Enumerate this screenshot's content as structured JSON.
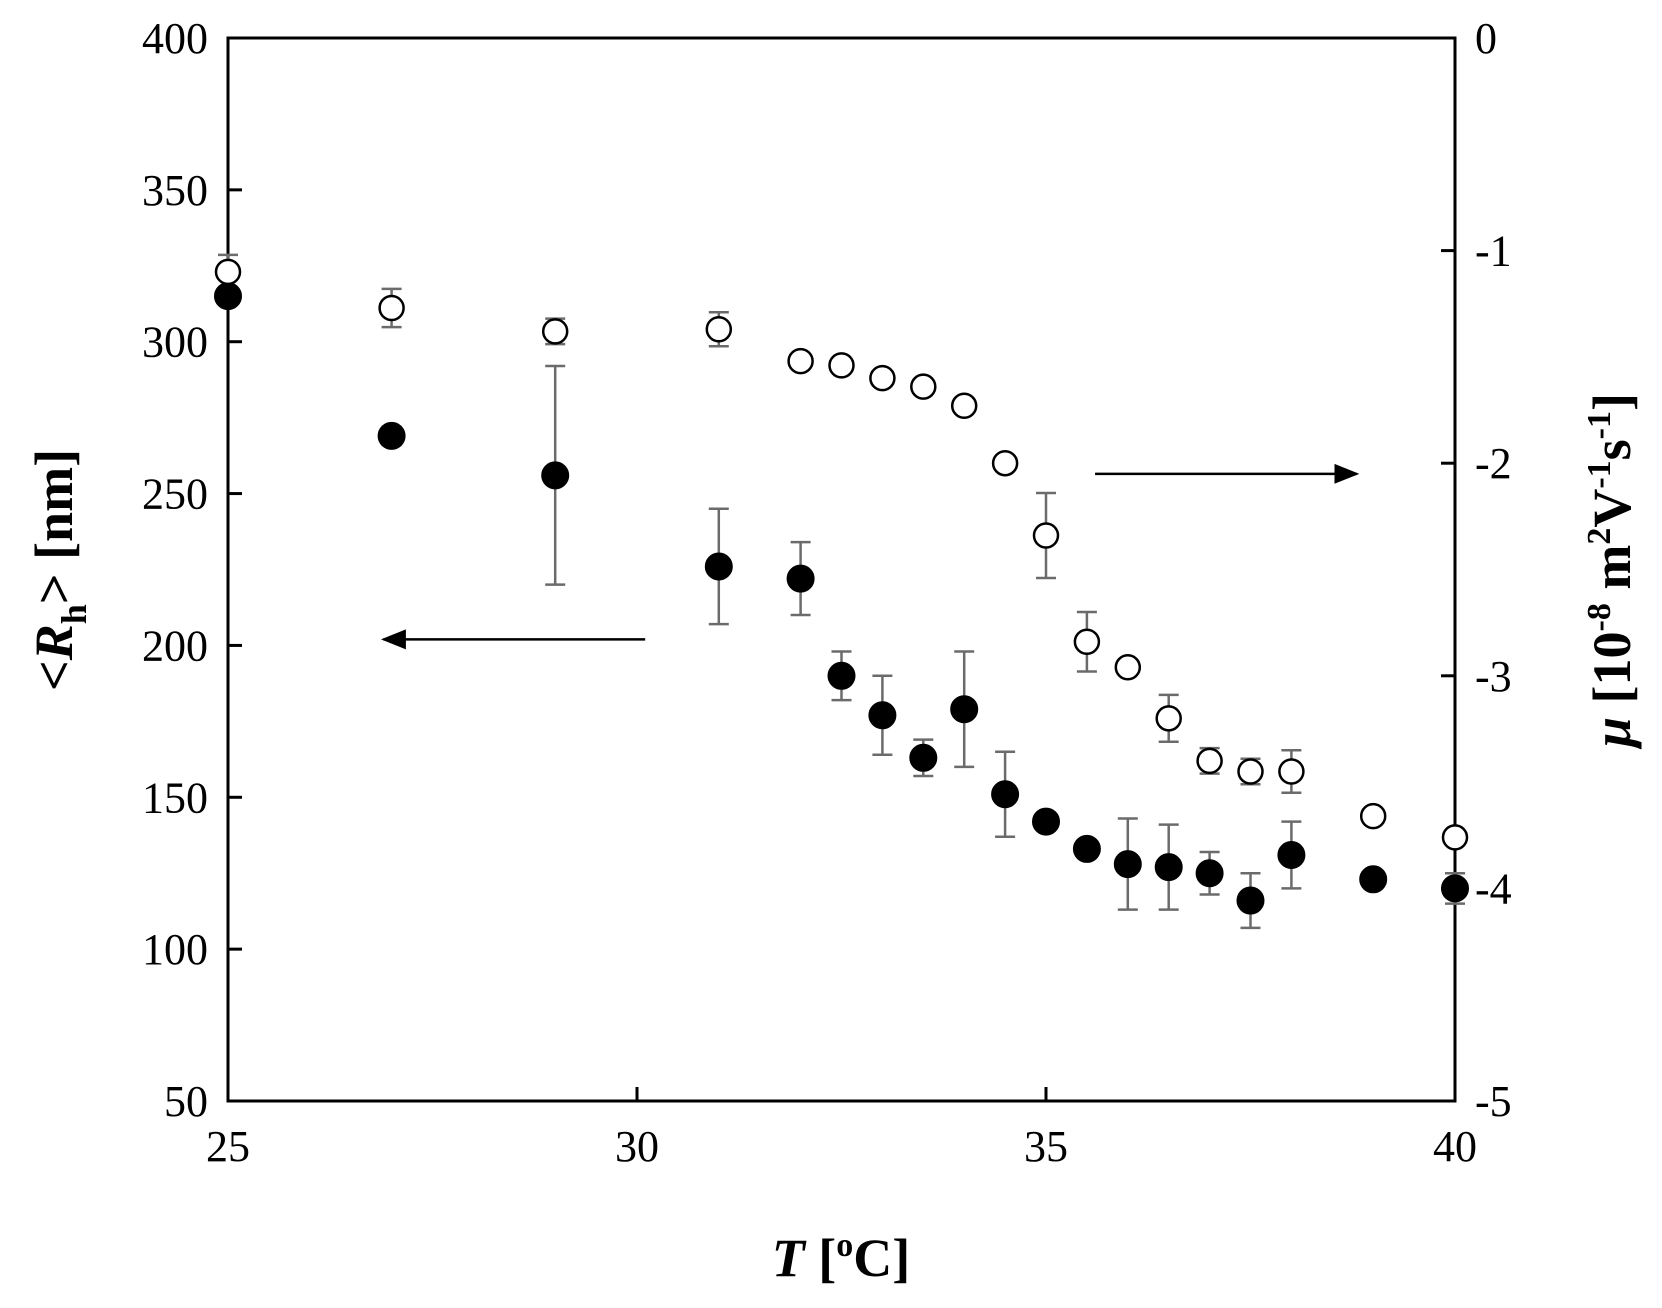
{
  "chart_data": {
    "type": "scatter",
    "title": "",
    "xlabel": {
      "var": "T",
      "unit_open": " [",
      "unit_sup": "o",
      "unit_close": "C]"
    },
    "ylabel_left": {
      "open": "<",
      "var": "R",
      "sub": "h",
      "rest": "> [nm]"
    },
    "ylabel_right": {
      "var": "μ",
      "pre": " [10",
      "sup1": "-8",
      "mid1": " m",
      "sup2": "2",
      "mid2": "V",
      "sup3": "-1",
      "mid3": "s",
      "sup4": "-1",
      "close": "]"
    },
    "xlim": [
      25,
      40
    ],
    "ylim_left": [
      50,
      400
    ],
    "ylim_right": [
      -5,
      0
    ],
    "x_ticks": [
      "25",
      "30",
      "35",
      "40"
    ],
    "y_left_ticks": [
      "50",
      "100",
      "150",
      "200",
      "250",
      "300",
      "350",
      "400"
    ],
    "y_right_ticks": [
      "-5",
      "-4",
      "-3",
      "-2",
      "-1",
      "0"
    ],
    "grid": false,
    "series": [
      {
        "marker": "filled-circle",
        "axis": "left",
        "points": [
          {
            "x": 25,
            "y": 315,
            "err": 0
          },
          {
            "x": 27,
            "y": 269,
            "err": 3
          },
          {
            "x": 29,
            "y": 256,
            "err": 36
          },
          {
            "x": 31,
            "y": 226,
            "err": 19
          },
          {
            "x": 32,
            "y": 222,
            "err": 12
          },
          {
            "x": 32.5,
            "y": 190,
            "err": 8
          },
          {
            "x": 33,
            "y": 177,
            "err": 13
          },
          {
            "x": 33.5,
            "y": 163,
            "err": 6
          },
          {
            "x": 34,
            "y": 179,
            "err": 19
          },
          {
            "x": 34.5,
            "y": 151,
            "err": 14
          },
          {
            "x": 35,
            "y": 142,
            "err": 0
          },
          {
            "x": 35.5,
            "y": 133,
            "err": 0
          },
          {
            "x": 36,
            "y": 128,
            "err": 15
          },
          {
            "x": 36.5,
            "y": 127,
            "err": 14
          },
          {
            "x": 37,
            "y": 125,
            "err": 7
          },
          {
            "x": 37.5,
            "y": 116,
            "err": 9
          },
          {
            "x": 38,
            "y": 131,
            "err": 11
          },
          {
            "x": 39,
            "y": 123,
            "err": 0
          },
          {
            "x": 40,
            "y": 120,
            "err": 5
          }
        ]
      },
      {
        "marker": "open-circle",
        "axis": "right",
        "points": [
          {
            "x": 25,
            "y": -1.1,
            "err": 0.08
          },
          {
            "x": 27,
            "y": -1.27,
            "err": 0.09
          },
          {
            "x": 29,
            "y": -1.38,
            "err": 0.06
          },
          {
            "x": 31,
            "y": -1.37,
            "err": 0.08
          },
          {
            "x": 32,
            "y": -1.52,
            "err": 0
          },
          {
            "x": 32.5,
            "y": -1.54,
            "err": 0
          },
          {
            "x": 33,
            "y": -1.6,
            "err": 0
          },
          {
            "x": 33.5,
            "y": -1.64,
            "err": 0
          },
          {
            "x": 34,
            "y": -1.73,
            "err": 0
          },
          {
            "x": 34.5,
            "y": -2.0,
            "err": 0
          },
          {
            "x": 35,
            "y": -2.34,
            "err": 0.2
          },
          {
            "x": 35.5,
            "y": -2.84,
            "err": 0.14
          },
          {
            "x": 36,
            "y": -2.96,
            "err": 0
          },
          {
            "x": 36.5,
            "y": -3.2,
            "err": 0.11
          },
          {
            "x": 37,
            "y": -3.4,
            "err": 0.06
          },
          {
            "x": 37.5,
            "y": -3.45,
            "err": 0.06
          },
          {
            "x": 38,
            "y": -3.45,
            "err": 0.1
          },
          {
            "x": 39,
            "y": -3.66,
            "err": 0
          },
          {
            "x": 40,
            "y": -3.76,
            "err": 0
          }
        ]
      }
    ],
    "annotations": [
      {
        "type": "arrow",
        "points_to": "left",
        "x_from": 30.1,
        "x_to": 26.9,
        "y": 202,
        "axis": "left"
      },
      {
        "type": "arrow",
        "points_to": "right",
        "x_from": 35.6,
        "x_to": 38.8,
        "y": -2.05,
        "axis": "right"
      }
    ]
  }
}
